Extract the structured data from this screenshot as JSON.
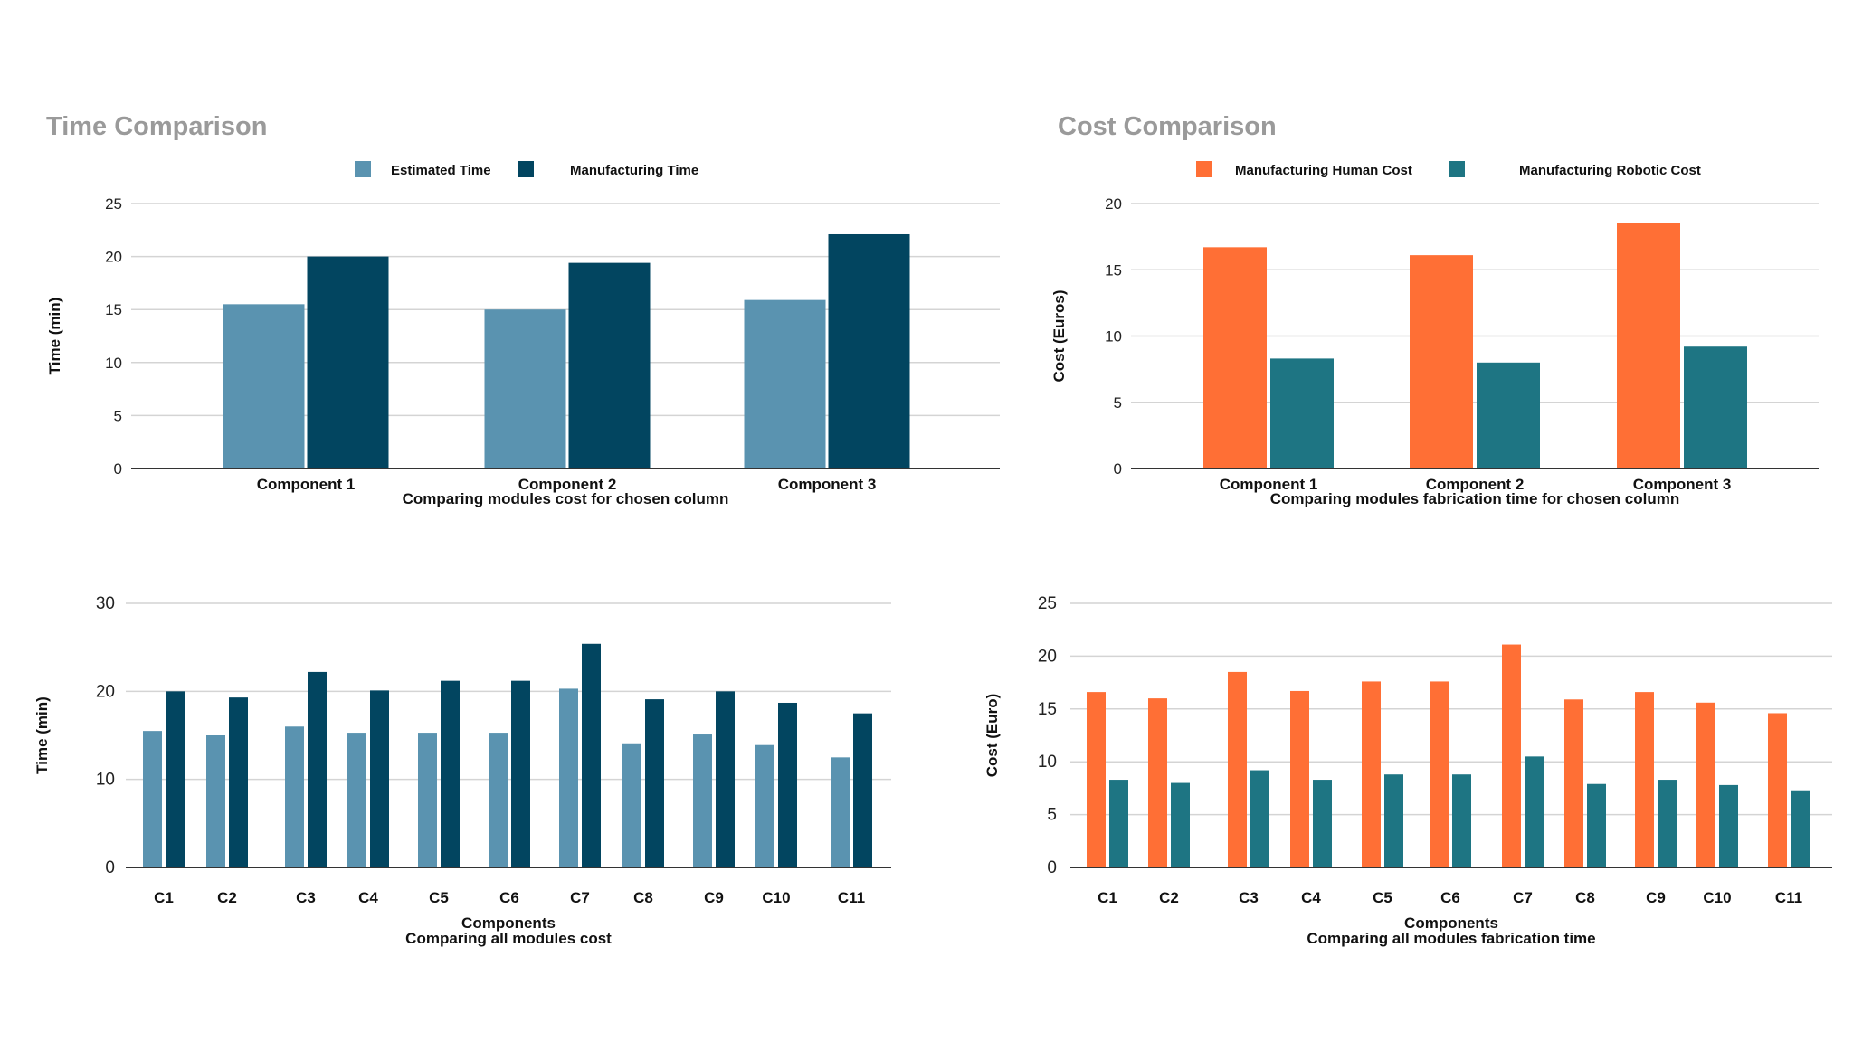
{
  "sections": {
    "time_title": "Time Comparison",
    "cost_title": "Cost Comparison"
  },
  "colors": {
    "estimated": "#5a93b0",
    "manufacturing": "#024560",
    "human": "#ff6f35",
    "robotic": "#1e7583",
    "grid": "#d4d4d4",
    "axis": "#333333",
    "title": "#9a9a9a"
  },
  "chart_data": [
    {
      "type": "bar",
      "legend": [
        "Estimated Time",
        "Manufacturing Time"
      ],
      "categories": [
        "Component 1",
        "Component 2",
        "Component 3"
      ],
      "series": [
        {
          "name": "Estimated Time",
          "values": [
            15.5,
            15.0,
            15.9
          ]
        },
        {
          "name": "Manufacturing Time",
          "values": [
            20.0,
            19.4,
            22.1
          ]
        }
      ],
      "xlabel": "Comparing modules cost for chosen column",
      "ylabel": "Time (min)",
      "ylim": [
        0,
        25
      ],
      "yticks": [
        0,
        5,
        10,
        15,
        20,
        25
      ],
      "grid": true,
      "legend_position": "top"
    },
    {
      "type": "bar",
      "legend": [
        "Manufacturing Human Cost",
        "Manufacturing Robotic Cost"
      ],
      "categories": [
        "Component 1",
        "Component 2",
        "Component 3"
      ],
      "series": [
        {
          "name": "Manufacturing Human Cost",
          "values": [
            16.7,
            16.1,
            18.5
          ]
        },
        {
          "name": "Manufacturing Robotic Cost",
          "values": [
            8.3,
            8.0,
            9.2
          ]
        }
      ],
      "xlabel": "Comparing modules fabrication time for chosen column",
      "ylabel": "Cost (Euros)",
      "ylim": [
        0,
        20
      ],
      "yticks": [
        0,
        5,
        10,
        15,
        20
      ],
      "grid": true,
      "legend_position": "top"
    },
    {
      "type": "bar",
      "categories": [
        "C1",
        "C2",
        "C3",
        "C4",
        "C5",
        "C6",
        "C7",
        "C8",
        "C9",
        "C10",
        "C11"
      ],
      "series": [
        {
          "values": [
            15.5,
            15.0,
            16.0,
            15.3,
            15.3,
            15.3,
            20.3,
            14.1,
            15.1,
            13.9,
            12.5
          ]
        },
        {
          "values": [
            20.0,
            19.3,
            22.2,
            20.1,
            21.2,
            21.2,
            25.4,
            19.1,
            20.0,
            18.7,
            17.5
          ]
        }
      ],
      "xlabel": "Components",
      "subtitle": "Comparing all modules cost",
      "ylabel": "Time (min)",
      "ylim": [
        0,
        30
      ],
      "yticks": [
        0,
        10,
        20,
        30
      ],
      "grid": true
    },
    {
      "type": "bar",
      "categories": [
        "C1",
        "C2",
        "C3",
        "C4",
        "C5",
        "C6",
        "C7",
        "C8",
        "C9",
        "C10",
        "C11"
      ],
      "series": [
        {
          "values": [
            16.6,
            16.0,
            18.5,
            16.7,
            17.6,
            17.6,
            21.1,
            15.9,
            16.6,
            15.6,
            14.6
          ]
        },
        {
          "values": [
            8.3,
            8.0,
            9.2,
            8.3,
            8.8,
            8.8,
            10.5,
            7.9,
            8.3,
            7.8,
            7.3
          ]
        }
      ],
      "xlabel": "Components",
      "subtitle": "Comparing all modules fabrication time",
      "ylabel": "Cost (Euro)",
      "ylim": [
        0,
        25
      ],
      "yticks": [
        0,
        5,
        10,
        15,
        20,
        25
      ],
      "grid": true
    }
  ]
}
